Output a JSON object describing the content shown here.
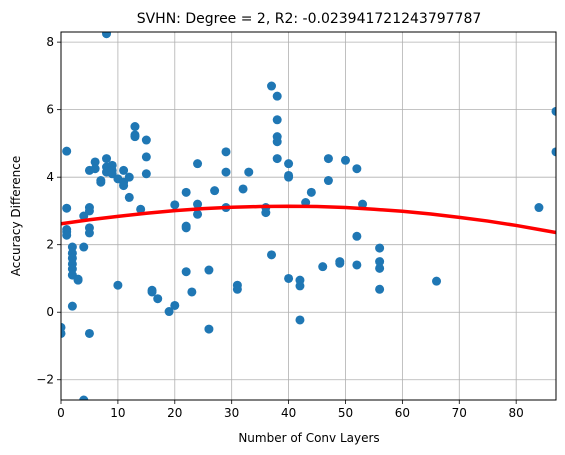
{
  "chart_data": {
    "type": "scatter",
    "title": "SVHN: Degree = 2, R2: -0.023941721243797787",
    "xlabel": "Number of Conv Layers",
    "ylabel": "Accuracy Difference",
    "xlim": [
      0,
      87
    ],
    "ylim": [
      -2.6,
      8.3
    ],
    "xticks": [
      0,
      10,
      20,
      30,
      40,
      50,
      60,
      70,
      80
    ],
    "yticks": [
      -2,
      0,
      2,
      4,
      6,
      8
    ],
    "grid": true,
    "colors": {
      "points": "#1f77b4",
      "fit": "#ff0000",
      "grid": "#b0b0b0"
    },
    "points": [
      {
        "x": 0,
        "y": -0.45
      },
      {
        "x": 0,
        "y": -0.63
      },
      {
        "x": 1,
        "y": 4.77
      },
      {
        "x": 1,
        "y": 3.08
      },
      {
        "x": 1,
        "y": 2.45
      },
      {
        "x": 1,
        "y": 2.38
      },
      {
        "x": 1,
        "y": 2.28
      },
      {
        "x": 2,
        "y": 1.93
      },
      {
        "x": 2,
        "y": 1.75
      },
      {
        "x": 2,
        "y": 1.6
      },
      {
        "x": 2,
        "y": 1.43
      },
      {
        "x": 2,
        "y": 1.28
      },
      {
        "x": 2,
        "y": 1.1
      },
      {
        "x": 2,
        "y": 0.18
      },
      {
        "x": 3,
        "y": 0.98
      },
      {
        "x": 3,
        "y": 0.95
      },
      {
        "x": 4,
        "y": 2.85
      },
      {
        "x": 4,
        "y": 1.93
      },
      {
        "x": 4,
        "y": -2.6
      },
      {
        "x": 5,
        "y": 4.2
      },
      {
        "x": 5,
        "y": 3.1
      },
      {
        "x": 5,
        "y": 3.0
      },
      {
        "x": 5,
        "y": 2.5
      },
      {
        "x": 5,
        "y": 2.35
      },
      {
        "x": 5,
        "y": -0.63
      },
      {
        "x": 6,
        "y": 4.45
      },
      {
        "x": 6,
        "y": 4.25
      },
      {
        "x": 7,
        "y": 3.9
      },
      {
        "x": 7,
        "y": 3.85
      },
      {
        "x": 8,
        "y": 8.25
      },
      {
        "x": 8,
        "y": 4.55
      },
      {
        "x": 8,
        "y": 4.3
      },
      {
        "x": 8,
        "y": 4.15
      },
      {
        "x": 9,
        "y": 4.35
      },
      {
        "x": 9,
        "y": 4.2
      },
      {
        "x": 9,
        "y": 4.1
      },
      {
        "x": 10,
        "y": 3.95
      },
      {
        "x": 10,
        "y": 0.8
      },
      {
        "x": 11,
        "y": 4.2
      },
      {
        "x": 11,
        "y": 3.85
      },
      {
        "x": 11,
        "y": 3.75
      },
      {
        "x": 12,
        "y": 4.0
      },
      {
        "x": 12,
        "y": 3.4
      },
      {
        "x": 13,
        "y": 5.5
      },
      {
        "x": 13,
        "y": 5.25
      },
      {
        "x": 13,
        "y": 5.2
      },
      {
        "x": 14,
        "y": 3.05
      },
      {
        "x": 15,
        "y": 5.1
      },
      {
        "x": 15,
        "y": 4.6
      },
      {
        "x": 15,
        "y": 4.1
      },
      {
        "x": 16,
        "y": 0.65
      },
      {
        "x": 16,
        "y": 0.6
      },
      {
        "x": 17,
        "y": 0.4
      },
      {
        "x": 19,
        "y": 0.02
      },
      {
        "x": 20,
        "y": 3.18
      },
      {
        "x": 20,
        "y": 0.2
      },
      {
        "x": 22,
        "y": 3.55
      },
      {
        "x": 22,
        "y": 2.55
      },
      {
        "x": 22,
        "y": 2.5
      },
      {
        "x": 22,
        "y": 1.2
      },
      {
        "x": 23,
        "y": 0.6
      },
      {
        "x": 24,
        "y": 4.4
      },
      {
        "x": 24,
        "y": 3.2
      },
      {
        "x": 24,
        "y": 2.9
      },
      {
        "x": 26,
        "y": 1.25
      },
      {
        "x": 26,
        "y": -0.5
      },
      {
        "x": 27,
        "y": 3.6
      },
      {
        "x": 29,
        "y": 4.75
      },
      {
        "x": 29,
        "y": 4.15
      },
      {
        "x": 29,
        "y": 3.1
      },
      {
        "x": 31,
        "y": 0.8
      },
      {
        "x": 31,
        "y": 0.68
      },
      {
        "x": 32,
        "y": 3.65
      },
      {
        "x": 33,
        "y": 4.15
      },
      {
        "x": 36,
        "y": 3.1
      },
      {
        "x": 36,
        "y": 2.95
      },
      {
        "x": 37,
        "y": 6.7
      },
      {
        "x": 37,
        "y": 1.7
      },
      {
        "x": 38,
        "y": 6.4
      },
      {
        "x": 38,
        "y": 5.7
      },
      {
        "x": 38,
        "y": 5.2
      },
      {
        "x": 38,
        "y": 5.05
      },
      {
        "x": 38,
        "y": 4.55
      },
      {
        "x": 40,
        "y": 4.4
      },
      {
        "x": 40,
        "y": 4.05
      },
      {
        "x": 40,
        "y": 4.0
      },
      {
        "x": 40,
        "y": 1.0
      },
      {
        "x": 42,
        "y": 0.95
      },
      {
        "x": 42,
        "y": 0.78
      },
      {
        "x": 42,
        "y": -0.23
      },
      {
        "x": 43,
        "y": 3.25
      },
      {
        "x": 44,
        "y": 3.55
      },
      {
        "x": 46,
        "y": 1.35
      },
      {
        "x": 47,
        "y": 4.55
      },
      {
        "x": 47,
        "y": 3.9
      },
      {
        "x": 49,
        "y": 1.5
      },
      {
        "x": 49,
        "y": 1.45
      },
      {
        "x": 50,
        "y": 4.5
      },
      {
        "x": 52,
        "y": 4.25
      },
      {
        "x": 52,
        "y": 2.25
      },
      {
        "x": 52,
        "y": 1.4
      },
      {
        "x": 53,
        "y": 3.2
      },
      {
        "x": 56,
        "y": 1.9
      },
      {
        "x": 56,
        "y": 1.5
      },
      {
        "x": 56,
        "y": 1.3
      },
      {
        "x": 56,
        "y": 0.68
      },
      {
        "x": 66,
        "y": 0.92
      },
      {
        "x": 84,
        "y": 3.1
      },
      {
        "x": 87,
        "y": 5.95
      },
      {
        "x": 87,
        "y": 4.75
      }
    ],
    "fit": {
      "type": "polynomial",
      "degree": 2,
      "x": [
        0,
        5,
        10,
        15,
        20,
        25,
        30,
        35,
        40,
        45,
        50,
        55,
        60,
        65,
        70,
        75,
        80,
        85,
        87
      ],
      "y": [
        2.62,
        2.74,
        2.84,
        2.93,
        3.01,
        3.07,
        3.11,
        3.13,
        3.14,
        3.13,
        3.1,
        3.05,
        2.99,
        2.91,
        2.81,
        2.7,
        2.57,
        2.42,
        2.36
      ]
    }
  }
}
